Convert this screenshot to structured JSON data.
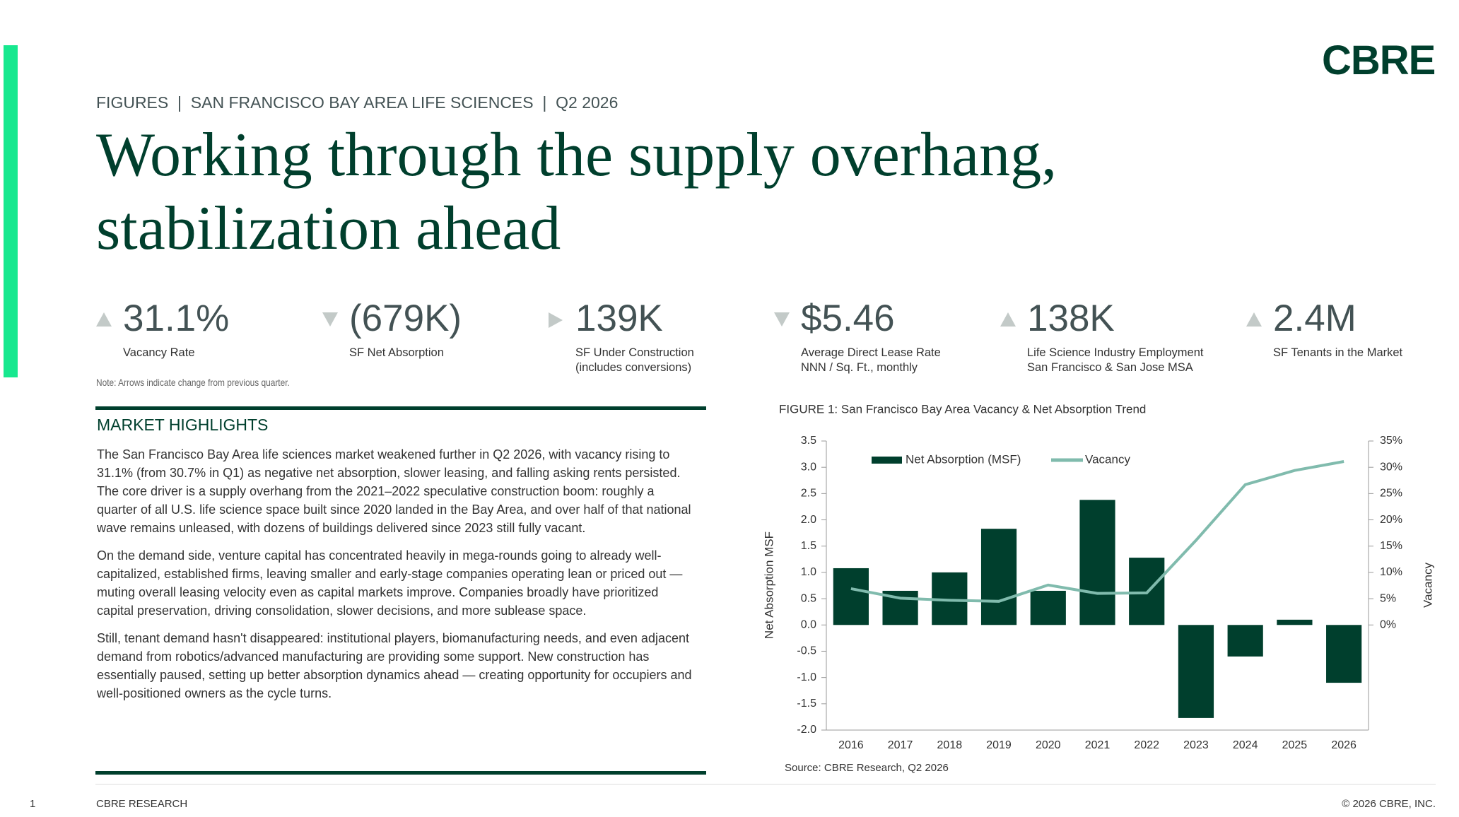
{
  "header": {
    "logo": "CBRE",
    "kicker": "FIGURES  |  SAN FRANCISCO BAY AREA LIFE SCIENCES  |  Q2 2026",
    "title": "Working through the supply overhang, stabilization ahead"
  },
  "stats": [
    {
      "value": "31.1%",
      "label": [
        "Vacancy Rate"
      ],
      "trend": "up"
    },
    {
      "value": "(679K)",
      "label": [
        "SF Net Absorption"
      ],
      "trend": "down"
    },
    {
      "value": "139K",
      "label": [
        "SF Under Construction",
        "(includes conversions)"
      ],
      "trend": "flat"
    },
    {
      "value": "$5.46",
      "label": [
        "Average Direct Lease Rate",
        "NNN / Sq. Ft., monthly"
      ],
      "trend": "down"
    },
    {
      "value": "138K",
      "label": [
        "Life Science Industry Employment",
        "San Francisco & San Jose MSA"
      ],
      "trend": "up"
    },
    {
      "value": "2.4M",
      "label": [
        "SF Tenants in the Market"
      ],
      "trend": "up"
    }
  ],
  "note": "Note: Arrows indicate change from previous quarter.",
  "highlights": {
    "heading": "MARKET HIGHLIGHTS",
    "paragraphs": [
      "The San Francisco Bay Area life sciences market weakened further in Q2 2026, with vacancy rising to 31.1% (from 30.7% in Q1) as negative net absorption, slower leasing, and falling asking rents persisted. The core driver is a supply overhang from the 2021–2022 speculative construction boom: roughly a quarter of all U.S. life science space built since 2020 landed in the Bay Area, and over half of that national wave remains unleased, with dozens of buildings delivered since 2023 still fully vacant.",
      "On the demand side, venture capital has concentrated heavily in mega-rounds going to already well-capitalized, established firms, leaving smaller and early-stage companies operating lean or priced out — muting overall leasing velocity even as capital markets improve. Companies broadly have prioritized capital preservation, driving consolidation, slower decisions, and more sublease space.",
      "Still, tenant demand hasn't disappeared: institutional players, biomanufacturing needs, and even adjacent demand from robotics/advanced manufacturing are providing some support. New construction has essentially paused, setting up better absorption dynamics ahead — creating opportunity for occupiers and well-positioned owners as the cycle turns."
    ]
  },
  "chart_data": {
    "type": "combo",
    "title": "FIGURE 1: San Francisco Bay Area Vacancy & Net Absorption Trend",
    "source": "Source: CBRE Research, Q2 2026",
    "ylabel": "Net Absorption MSF",
    "y2label": "Vacancy",
    "categories": [
      "2016",
      "2017",
      "2018",
      "2019",
      "2020",
      "2021",
      "2022",
      "2023",
      "2024",
      "2025",
      "2026"
    ],
    "series": [
      {
        "name": "Net Absorption (MSF)",
        "type": "bar",
        "color": "#003f2d",
        "values": [
          1.08,
          0.65,
          1.0,
          1.83,
          0.65,
          2.38,
          1.28,
          -1.77,
          -0.6,
          0.1,
          -1.1
        ]
      },
      {
        "name": "Vacancy",
        "type": "line",
        "color": "#80bbad",
        "axis": "y2",
        "values": [
          6.9,
          5.1,
          4.7,
          4.5,
          7.6,
          6.0,
          6.1,
          16.1,
          26.7,
          29.4,
          31.1
        ]
      }
    ],
    "ylim": [
      -2,
      3.5
    ],
    "yticks": [
      3.5,
      {
        "value": 3,
        "label": "3.0"
      },
      2.5,
      {
        "value": 2,
        "label": "2.0"
      },
      1.5,
      {
        "value": 1,
        "label": "1.0"
      },
      0.5,
      {
        "value": 0,
        "label": "0.0"
      },
      -0.5,
      {
        "value": -1,
        "label": "-1.0"
      },
      -1.5,
      {
        "value": -2,
        "label": "-2.0"
      }
    ],
    "y2lim": [
      -20,
      35
    ],
    "y2ticks": [
      {
        "value": 35,
        "label": "35%"
      },
      {
        "value": 30,
        "label": "30%"
      },
      {
        "value": 25,
        "label": "25%"
      },
      {
        "value": 20,
        "label": "20%"
      },
      {
        "value": 15,
        "label": "15%"
      },
      {
        "value": 10,
        "label": "10%"
      },
      {
        "value": 5,
        "label": "5%"
      },
      {
        "value": 0,
        "label": "0%"
      }
    ],
    "legend": "top-left",
    "grid": false
  },
  "footer": {
    "page": "1",
    "left": "CBRE RESEARCH",
    "right": "© 2026 CBRE, INC."
  }
}
